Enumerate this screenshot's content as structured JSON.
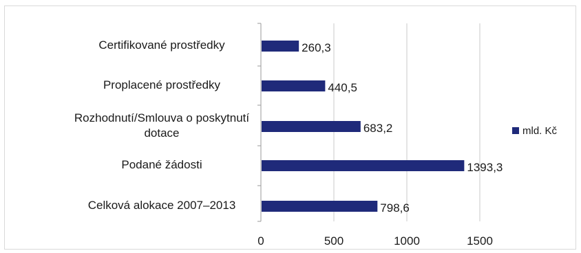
{
  "chart_data": {
    "type": "bar",
    "orientation": "horizontal",
    "categories": [
      "Certifikované prostředky",
      "Proplacené prostředky",
      "Rozhodnutí/Smlouva o poskytnutí dotace",
      "Podané žádosti",
      "Celková alokace 2007–2013"
    ],
    "category_lines": [
      [
        "Certifikované prostředky"
      ],
      [
        "Proplacené prostředky"
      ],
      [
        "Rozhodnutí/Smlouva o poskytnutí",
        "dotace"
      ],
      [
        "Podané žádosti"
      ],
      [
        "Celková alokace 2007–2013"
      ]
    ],
    "series": [
      {
        "name": "mld. Kč",
        "values": [
          260.3,
          440.5,
          683.2,
          1393.3,
          798.6
        ],
        "labels": [
          "260,3",
          "440,5",
          "683,2",
          "1393,3",
          "798,6"
        ]
      }
    ],
    "xlim": [
      0,
      1500
    ],
    "x_ticks": [
      "0",
      "500",
      "1000",
      "1500"
    ],
    "x_tick_values": [
      0,
      500,
      1000,
      1500
    ],
    "grid": "vertical",
    "legend": "right",
    "bar_color": "#1f2a7a",
    "grid_color": "#c8c8c8"
  }
}
